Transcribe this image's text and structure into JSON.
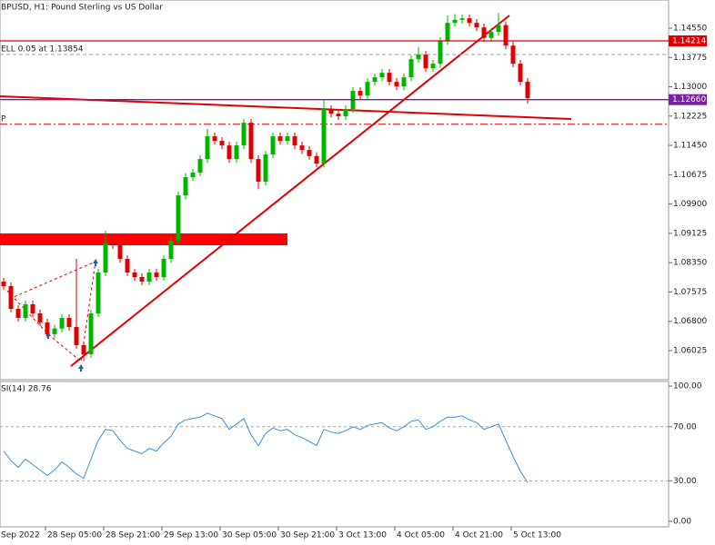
{
  "chart_data": [
    {
      "type": "candlestick",
      "title": "BPUSD, H1:  Pound Sterling vs US Dollar",
      "up_color": "#00b400",
      "down_color": "#e00000",
      "open": [
        1.0785,
        1.0773,
        1.0713,
        1.0689,
        1.0725,
        1.0701,
        1.0677,
        1.0646,
        1.0661,
        1.0689,
        1.0665,
        1.0617,
        1.0593,
        1.0701,
        1.0809,
        1.0886,
        1.0881,
        1.0845,
        1.0809,
        1.0797,
        1.0785,
        1.0809,
        1.0797,
        1.0845,
        1.0893,
        1.1013,
        1.1061,
        1.1073,
        1.1109,
        1.1169,
        1.1157,
        1.1145,
        1.1109,
        1.1145,
        1.1205,
        1.1109,
        1.1049,
        1.1121,
        1.1169,
        1.1157,
        1.1169,
        1.1145,
        1.1133,
        1.1117,
        1.1097,
        1.1241,
        1.1229,
        1.1222,
        1.1241,
        1.1289,
        1.1277,
        1.1313,
        1.1325,
        1.1337,
        1.1313,
        1.1301,
        1.1325,
        1.1373,
        1.1385,
        1.1349,
        1.1361,
        1.1421,
        1.1469,
        1.1477,
        1.1481,
        1.1469,
        1.1457,
        1.1429,
        1.1445,
        1.1463,
        1.1409,
        1.1361,
        1.1313
      ],
      "high": [
        1.0795,
        1.0783,
        1.0723,
        1.0735,
        1.0735,
        1.0711,
        1.0687,
        1.0671,
        1.0699,
        1.0699,
        1.0845,
        1.0627,
        1.0711,
        1.0819,
        1.092,
        1.0896,
        1.0891,
        1.0855,
        1.0819,
        1.0807,
        1.0819,
        1.0819,
        1.0855,
        1.0903,
        1.1023,
        1.1071,
        1.1083,
        1.1119,
        1.1189,
        1.1179,
        1.1167,
        1.1155,
        1.1155,
        1.1215,
        1.1215,
        1.1119,
        1.1131,
        1.1179,
        1.1179,
        1.1179,
        1.1179,
        1.1155,
        1.1143,
        1.1127,
        1.1265,
        1.1251,
        1.1239,
        1.1251,
        1.1299,
        1.1299,
        1.1323,
        1.1335,
        1.1347,
        1.1347,
        1.1323,
        1.1335,
        1.1383,
        1.1405,
        1.1395,
        1.1371,
        1.1431,
        1.1489,
        1.1492,
        1.1491,
        1.1491,
        1.1479,
        1.1467,
        1.1455,
        1.1495,
        1.1473,
        1.1419,
        1.1371,
        1.1323
      ],
      "low": [
        1.0763,
        1.0703,
        1.0679,
        1.0679,
        1.0691,
        1.0667,
        1.0636,
        1.0636,
        1.0651,
        1.0655,
        1.0607,
        1.0575,
        1.0583,
        1.0691,
        1.0799,
        1.0871,
        1.0835,
        1.0799,
        1.0787,
        1.0775,
        1.0775,
        1.0787,
        1.0787,
        1.0835,
        1.0883,
        1.1003,
        1.1051,
        1.1063,
        1.1099,
        1.1147,
        1.1135,
        1.1099,
        1.1099,
        1.1135,
        1.1099,
        1.1029,
        1.1039,
        1.1111,
        1.1147,
        1.1147,
        1.1135,
        1.1123,
        1.1107,
        1.1087,
        1.1087,
        1.1219,
        1.1212,
        1.1212,
        1.1231,
        1.1267,
        1.1267,
        1.1303,
        1.1315,
        1.1303,
        1.1291,
        1.1291,
        1.1315,
        1.1363,
        1.1339,
        1.1339,
        1.1351,
        1.1411,
        1.1459,
        1.1467,
        1.1459,
        1.1447,
        1.1419,
        1.1419,
        1.1435,
        1.1399,
        1.1351,
        1.1303,
        1.1255
      ],
      "close": [
        1.0773,
        1.0713,
        1.0689,
        1.0725,
        1.0701,
        1.0677,
        1.0646,
        1.0661,
        1.0689,
        1.0665,
        1.0617,
        1.0593,
        1.0701,
        1.0809,
        1.0886,
        1.0881,
        1.0845,
        1.0809,
        1.0797,
        1.0785,
        1.0809,
        1.0797,
        1.0845,
        1.0893,
        1.1013,
        1.1061,
        1.1073,
        1.1109,
        1.1169,
        1.1157,
        1.1145,
        1.1109,
        1.1145,
        1.1205,
        1.1109,
        1.1049,
        1.1121,
        1.1169,
        1.1157,
        1.1169,
        1.1145,
        1.1133,
        1.1117,
        1.1097,
        1.1241,
        1.1229,
        1.1222,
        1.1241,
        1.1289,
        1.1277,
        1.1313,
        1.1325,
        1.1337,
        1.1313,
        1.1301,
        1.1325,
        1.1373,
        1.1385,
        1.1349,
        1.1361,
        1.1421,
        1.1469,
        1.1477,
        1.1481,
        1.1469,
        1.1457,
        1.1429,
        1.1445,
        1.1463,
        1.1409,
        1.1361,
        1.1313,
        1.127
      ],
      "ylim": [
        1.05257,
        1.15294
      ],
      "yticks": [
        {
          "value": 1.1455,
          "label": "1.14550"
        },
        1.13775,
        {
          "value": 1.13,
          "label": "1.13000"
        },
        1.12225,
        {
          "value": 1.1145,
          "label": "1.11450"
        },
        1.10675,
        {
          "value": 1.099,
          "label": "1.09900"
        },
        1.09125,
        {
          "value": 1.0835,
          "label": "1.08350"
        },
        1.07575,
        {
          "value": 1.068,
          "label": "1.06800"
        },
        1.06025
      ],
      "levels": [
        {
          "value": 1.14214,
          "label": "1.14214",
          "color": "#e00000"
        },
        {
          "value": 1.1266,
          "label": "1.12660",
          "color": "#7b1fa2"
        }
      ],
      "orders": [
        {
          "text": "ELL 0.05 at 1.13854",
          "value": 1.13854,
          "color": "#9e9e9e",
          "dash": "4 3"
        },
        {
          "text": "P",
          "value": 1.1201,
          "color": "#e00000",
          "dash": "8 3 2 3"
        }
      ],
      "xlabels": [
        "Sep 2022",
        "28 Sep 05:00",
        "28 Sep 21:00",
        "29 Sep 13:00",
        "30 Sep 05:00",
        "30 Sep 21:00",
        "3 Oct 13:00",
        "4 Oct 05:00",
        "4 Oct 21:00",
        "5 Oct 13:00"
      ]
    },
    {
      "type": "line",
      "title": "SI(14) 28.76",
      "color": "#3d8fdb",
      "values": [
        52,
        45,
        40,
        46,
        42,
        38,
        34,
        38,
        44,
        40,
        35,
        32,
        46,
        60,
        68,
        67,
        60,
        54,
        52,
        50,
        54,
        52,
        58,
        63,
        72,
        75,
        76,
        77,
        80,
        78,
        76,
        68,
        72,
        76,
        64,
        56,
        65,
        69,
        67,
        68,
        64,
        62,
        59,
        56,
        68,
        66,
        65,
        67,
        70,
        68,
        71,
        72,
        73,
        69,
        67,
        70,
        74,
        75,
        68,
        70,
        74,
        77,
        77,
        78,
        75,
        73,
        68,
        70,
        72,
        60,
        48,
        37,
        28.76
      ],
      "ylim": [
        -4,
        103.4
      ],
      "yticks": [
        {
          "value": 100,
          "label": "100.00"
        },
        {
          "value": 70,
          "label": "70.00"
        },
        {
          "value": 30,
          "label": "30.00"
        },
        {
          "value": 0,
          "label": "0.00"
        }
      ]
    }
  ]
}
